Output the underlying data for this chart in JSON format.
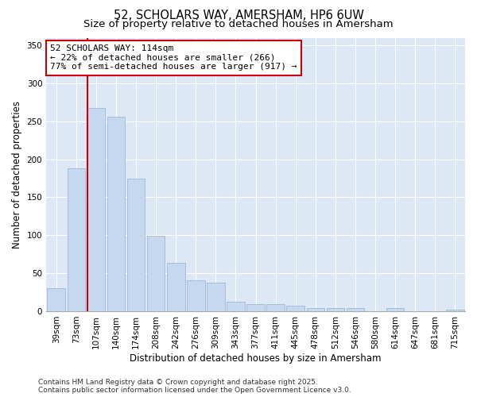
{
  "title_line1": "52, SCHOLARS WAY, AMERSHAM, HP6 6UW",
  "title_line2": "Size of property relative to detached houses in Amersham",
  "xlabel": "Distribution of detached houses by size in Amersham",
  "ylabel": "Number of detached properties",
  "categories": [
    "39sqm",
    "73sqm",
    "107sqm",
    "140sqm",
    "174sqm",
    "208sqm",
    "242sqm",
    "276sqm",
    "309sqm",
    "343sqm",
    "377sqm",
    "411sqm",
    "445sqm",
    "478sqm",
    "512sqm",
    "546sqm",
    "580sqm",
    "614sqm",
    "647sqm",
    "681sqm",
    "715sqm"
  ],
  "values": [
    30,
    188,
    268,
    256,
    174,
    99,
    64,
    41,
    38,
    12,
    9,
    9,
    7,
    4,
    4,
    4,
    0,
    4,
    0,
    0,
    2
  ],
  "bar_color": "#c5d8f0",
  "bar_edgecolor": "#a0b8d8",
  "vline_color": "#cc0000",
  "vline_x_index": 2,
  "annotation_text": "52 SCHOLARS WAY: 114sqm\n← 22% of detached houses are smaller (266)\n77% of semi-detached houses are larger (917) →",
  "annotation_box_edgecolor": "#cc0000",
  "annotation_box_facecolor": "#ffffff",
  "ylim": [
    0,
    360
  ],
  "yticks": [
    0,
    50,
    100,
    150,
    200,
    250,
    300,
    350
  ],
  "fig_bg_color": "#ffffff",
  "plot_bg_color": "#dce8f5",
  "grid_color": "#ffffff",
  "footer_line1": "Contains HM Land Registry data © Crown copyright and database right 2025.",
  "footer_line2": "Contains public sector information licensed under the Open Government Licence v3.0.",
  "title_fontsize": 10.5,
  "subtitle_fontsize": 9.5,
  "axis_label_fontsize": 8.5,
  "tick_fontsize": 7.5,
  "annotation_fontsize": 8,
  "footer_fontsize": 6.5
}
